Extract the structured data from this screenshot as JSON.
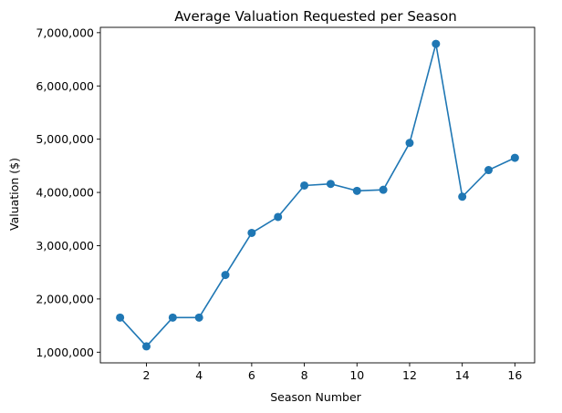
{
  "chart_data": {
    "type": "line",
    "title": "Average Valuation Requested per Season",
    "xlabel": "Season Number",
    "ylabel": "Valuation ($)",
    "x_ticks": [
      2,
      4,
      6,
      8,
      10,
      12,
      14,
      16
    ],
    "y_ticks": [
      1000000,
      2000000,
      3000000,
      4000000,
      5000000,
      6000000,
      7000000
    ],
    "y_tick_labels": [
      "1,000,000",
      "2,000,000",
      "3,000,000",
      "4,000,000",
      "5,000,000",
      "6,000,000",
      "7,000,000"
    ],
    "xlim": [
      0.25,
      16.75
    ],
    "ylim": [
      800000,
      7100000
    ],
    "grid": false,
    "series_color": "#1f77b4",
    "series": [
      {
        "x": [
          1,
          2,
          3,
          4,
          5,
          6,
          7,
          8,
          9,
          10,
          11,
          12,
          13,
          14,
          15,
          16
        ],
        "values": [
          1650000,
          1110000,
          1650000,
          1650000,
          2450000,
          3240000,
          3540000,
          4130000,
          4160000,
          4030000,
          4050000,
          4930000,
          6790000,
          3920000,
          4420000,
          4650000
        ]
      }
    ]
  }
}
